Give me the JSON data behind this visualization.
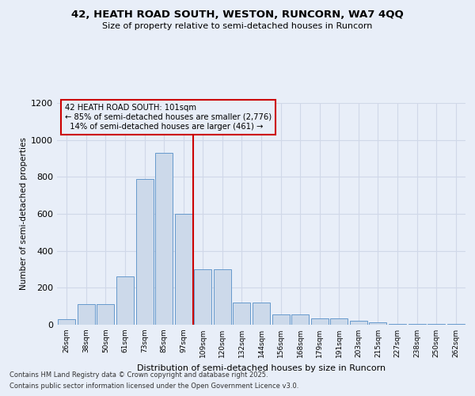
{
  "title1": "42, HEATH ROAD SOUTH, WESTON, RUNCORN, WA7 4QQ",
  "title2": "Size of property relative to semi-detached houses in Runcorn",
  "xlabel": "Distribution of semi-detached houses by size in Runcorn",
  "ylabel": "Number of semi-detached properties",
  "categories": [
    "26sqm",
    "38sqm",
    "50sqm",
    "61sqm",
    "73sqm",
    "85sqm",
    "97sqm",
    "109sqm",
    "120sqm",
    "132sqm",
    "144sqm",
    "156sqm",
    "168sqm",
    "179sqm",
    "191sqm",
    "203sqm",
    "215sqm",
    "227sqm",
    "238sqm",
    "250sqm",
    "262sqm"
  ],
  "values": [
    30,
    110,
    110,
    260,
    790,
    930,
    600,
    300,
    300,
    120,
    120,
    55,
    55,
    35,
    35,
    20,
    15,
    5,
    5,
    5,
    5
  ],
  "bar_color": "#ccd9ea",
  "bar_edge_color": "#6699cc",
  "vline_color": "#cc0000",
  "vline_position": 6.5,
  "annotation_label": "42 HEATH ROAD SOUTH: 101sqm",
  "pct_smaller": 85,
  "n_smaller": 2776,
  "pct_larger": 14,
  "n_larger": 461,
  "annotation_box_edge": "#cc0000",
  "ylim": [
    0,
    1200
  ],
  "yticks": [
    0,
    200,
    400,
    600,
    800,
    1000,
    1200
  ],
  "grid_color": "#d0d8e8",
  "bg_color": "#e8eef8",
  "footnote1": "Contains HM Land Registry data © Crown copyright and database right 2025.",
  "footnote2": "Contains public sector information licensed under the Open Government Licence v3.0."
}
